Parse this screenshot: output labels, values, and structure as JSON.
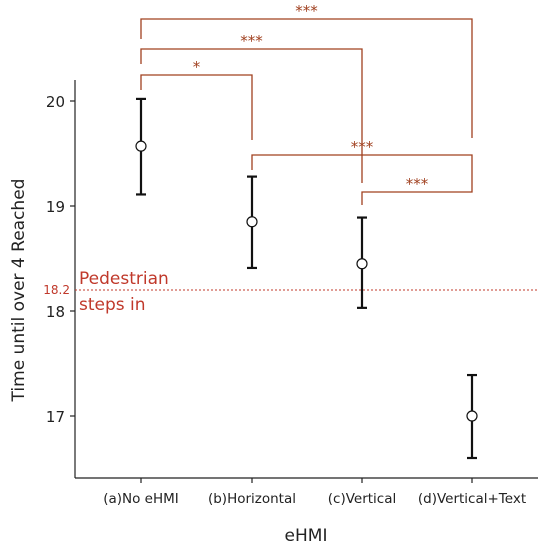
{
  "chart_data": {
    "type": "scatter",
    "xlabel": "eHMI",
    "ylabel": "Time until over 4 Reached",
    "categories": [
      "(a)No eHMI",
      "(b)Horizontal",
      "(c)Vertical",
      "(d)Vertical+Text"
    ],
    "series": [
      {
        "means": [
          19.57,
          18.85,
          18.45,
          17.0
        ],
        "lower": [
          19.11,
          18.41,
          18.03,
          16.6
        ],
        "upper": [
          20.02,
          19.28,
          18.89,
          17.39
        ]
      }
    ],
    "ylim": [
      16.4,
      20.3
    ],
    "yticks": [
      17,
      18,
      19,
      20
    ],
    "reference_line": {
      "value": 18.2,
      "label": "18.2",
      "text_line1": "Pedestrian",
      "text_line2": "steps in",
      "color": "#c0392b"
    },
    "significance": [
      {
        "from": 0,
        "to": 3,
        "label": "***"
      },
      {
        "from": 0,
        "to": 2,
        "label": "***"
      },
      {
        "from": 0,
        "to": 1,
        "label": "*"
      },
      {
        "from": 1,
        "to": 3,
        "label": "***"
      },
      {
        "from": 2,
        "to": 3,
        "label": "***"
      }
    ],
    "bracket_color": "#a0401f",
    "grid": false
  }
}
